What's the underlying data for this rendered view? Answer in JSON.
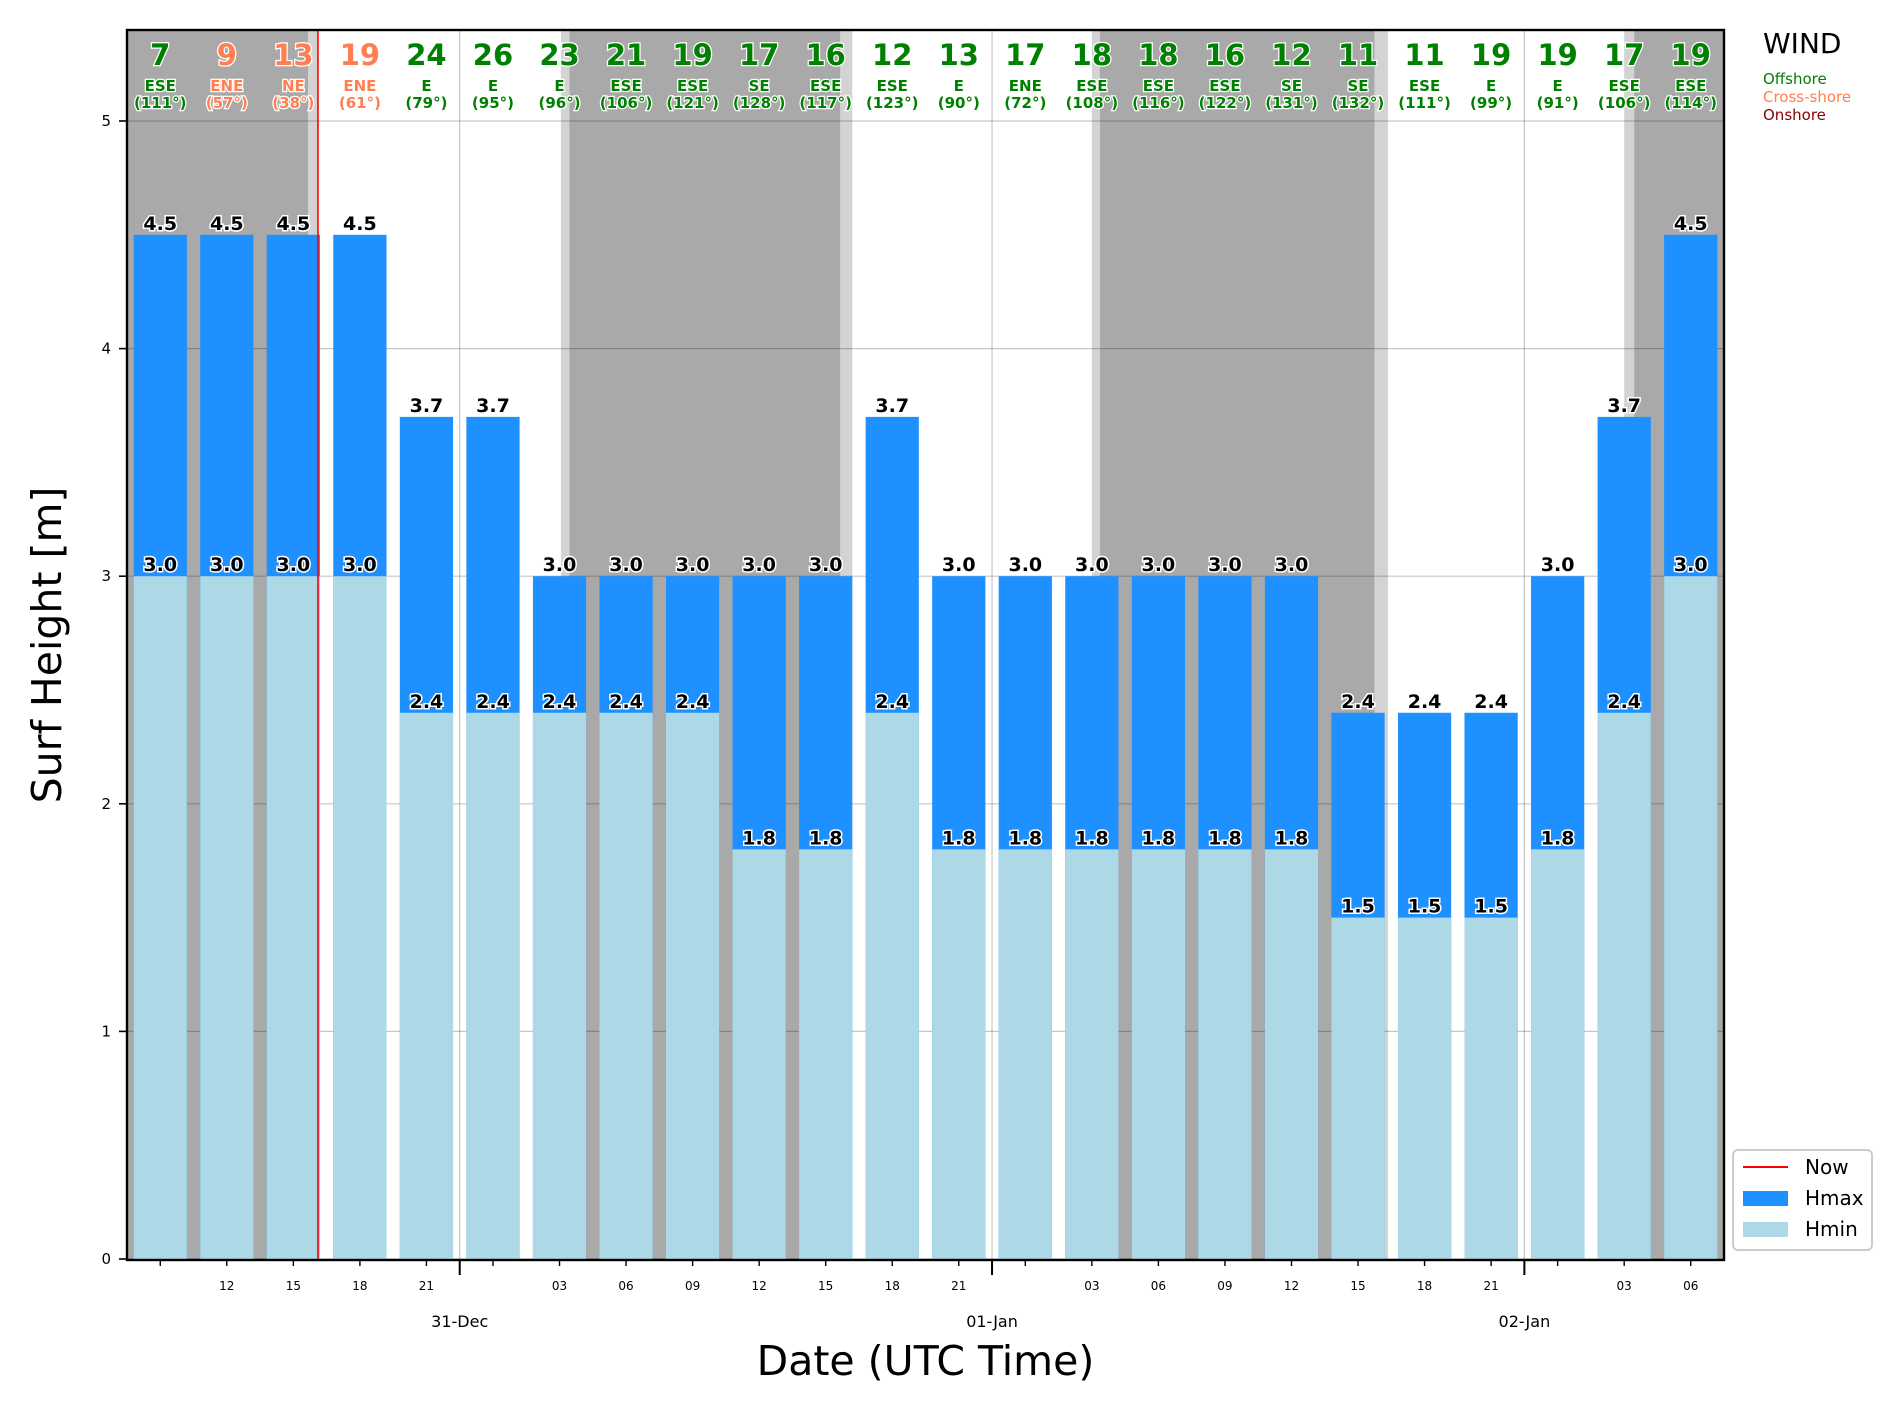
{
  "chart_data": {
    "type": "bar",
    "xlabel": "Date (UTC Time)",
    "ylabel": "Surf Height [m]",
    "ylim": [
      0,
      5
    ],
    "yticks": [
      "0",
      "1",
      "2",
      "3",
      "4",
      "5"
    ],
    "grid": true,
    "legend_position": "bottom-right outside",
    "x": [
      "2024-12-30 09:00",
      "2024-12-30 12:00",
      "2024-12-30 15:00",
      "2024-12-30 18:00",
      "2024-12-30 21:00",
      "2024-12-31 00:00",
      "2024-12-31 03:00",
      "2024-12-31 06:00",
      "2024-12-31 09:00",
      "2024-12-31 12:00",
      "2024-12-31 15:00",
      "2024-12-31 18:00",
      "2024-12-31 21:00",
      "2025-01-01 00:00",
      "2025-01-01 03:00",
      "2025-01-01 06:00",
      "2025-01-01 09:00",
      "2025-01-01 12:00",
      "2025-01-01 15:00",
      "2025-01-01 18:00",
      "2025-01-01 21:00",
      "2025-01-02 00:00",
      "2025-01-02 03:00",
      "2025-01-02 06:00"
    ],
    "x_hour_labels": [
      "",
      "12",
      "15",
      "18",
      "21",
      "",
      "03",
      "06",
      "09",
      "12",
      "15",
      "18",
      "21",
      "",
      "03",
      "06",
      "09",
      "12",
      "15",
      "18",
      "21",
      "",
      "03",
      "06"
    ],
    "date_labels": [
      {
        "at": 5,
        "text": "31-Dec"
      },
      {
        "at": 13,
        "text": "01-Jan"
      },
      {
        "at": 21,
        "text": "02-Jan"
      }
    ],
    "series": [
      {
        "name": "Hmax",
        "color": "#1e90ff",
        "values": [
          4.5,
          4.5,
          4.5,
          4.5,
          3.7,
          3.7,
          3.0,
          3.0,
          3.0,
          3.0,
          3.0,
          3.7,
          3.0,
          3.0,
          3.0,
          3.0,
          3.0,
          3.0,
          2.4,
          2.4,
          2.4,
          3.0,
          3.7,
          4.5
        ]
      },
      {
        "name": "Hmin",
        "color": "#add8e6",
        "values": [
          3.0,
          3.0,
          3.0,
          3.0,
          2.4,
          2.4,
          2.4,
          2.4,
          2.4,
          1.8,
          1.8,
          2.4,
          1.8,
          1.8,
          1.8,
          1.8,
          1.8,
          1.8,
          1.5,
          1.5,
          1.5,
          1.8,
          2.4,
          3.0
        ]
      }
    ],
    "hmax_labels": [
      "4.5",
      "4.5",
      "4.5",
      "4.5",
      "3.7",
      "3.7",
      "3.0",
      "3.0",
      "3.0",
      "3.0",
      "3.0",
      "3.7",
      "3.0",
      "3.0",
      "3.0",
      "3.0",
      "3.0",
      "3.0",
      "2.4",
      "2.4",
      "2.4",
      "3.0",
      "3.7",
      "4.5"
    ],
    "hmin_labels": [
      "3.0",
      "3.0",
      "3.0",
      "3.0",
      "2.4",
      "2.4",
      "2.4",
      "2.4",
      "2.4",
      "1.8",
      "1.8",
      "2.4",
      "1.8",
      "1.8",
      "1.8",
      "1.8",
      "1.8",
      "1.8",
      "1.5",
      "1.5",
      "1.5",
      "1.8",
      "2.4",
      "3.0"
    ],
    "now_index": 2.37,
    "now_color": "#ff0000",
    "night_shading": [
      {
        "from": -0.5,
        "to": 2.22,
        "color": "#a9a9a9"
      },
      {
        "from": 2.22,
        "to": 2.37,
        "color": "#d3d3d3"
      },
      {
        "from": 6.02,
        "to": 6.15,
        "color": "#d3d3d3"
      },
      {
        "from": 6.15,
        "to": 10.22,
        "color": "#a9a9a9"
      },
      {
        "from": 10.22,
        "to": 10.4,
        "color": "#d3d3d3"
      },
      {
        "from": 14.0,
        "to": 14.12,
        "color": "#d3d3d3"
      },
      {
        "from": 14.12,
        "to": 18.25,
        "color": "#a9a9a9"
      },
      {
        "from": 18.25,
        "to": 18.45,
        "color": "#d3d3d3"
      },
      {
        "from": 22.0,
        "to": 22.15,
        "color": "#d3d3d3"
      },
      {
        "from": 22.15,
        "to": 23.5,
        "color": "#a9a9a9"
      }
    ],
    "wind": {
      "title": "WIND",
      "speed": [
        "7",
        "9",
        "13",
        "19",
        "24",
        "26",
        "23",
        "21",
        "19",
        "17",
        "16",
        "12",
        "13",
        "17",
        "18",
        "18",
        "16",
        "12",
        "11",
        "11",
        "19",
        "19",
        "17",
        "19"
      ],
      "dir": [
        "ESE",
        "ENE",
        "NE",
        "ENE",
        "E",
        "E",
        "E",
        "ESE",
        "ESE",
        "SE",
        "ESE",
        "ESE",
        "E",
        "ENE",
        "ESE",
        "ESE",
        "ESE",
        "SE",
        "SE",
        "ESE",
        "E",
        "E",
        "ESE",
        "ESE"
      ],
      "deg": [
        "(111°)",
        "(57°)",
        "(38°)",
        "(61°)",
        "(79°)",
        "(95°)",
        "(96°)",
        "(106°)",
        "(121°)",
        "(128°)",
        "(117°)",
        "(123°)",
        "(90°)",
        "(72°)",
        "(108°)",
        "(116°)",
        "(122°)",
        "(131°)",
        "(132°)",
        "(111°)",
        "(99°)",
        "(91°)",
        "(106°)",
        "(114°)"
      ],
      "category": [
        "offshore",
        "cross",
        "cross",
        "cross",
        "offshore",
        "offshore",
        "offshore",
        "offshore",
        "offshore",
        "offshore",
        "offshore",
        "offshore",
        "offshore",
        "offshore",
        "offshore",
        "offshore",
        "offshore",
        "offshore",
        "offshore",
        "offshore",
        "offshore",
        "offshore",
        "offshore",
        "offshore"
      ],
      "legend": [
        {
          "label": "Offshore",
          "color": "#008000"
        },
        {
          "label": "Cross-shore",
          "color": "#ff7f50"
        },
        {
          "label": "Onshore",
          "color": "#8b0000"
        }
      ]
    },
    "legend": [
      {
        "label": "Now",
        "kind": "line",
        "color": "#ff0000"
      },
      {
        "label": "Hmax",
        "kind": "patch",
        "color": "#1e90ff"
      },
      {
        "label": "Hmin",
        "kind": "patch",
        "color": "#add8e6"
      }
    ]
  }
}
